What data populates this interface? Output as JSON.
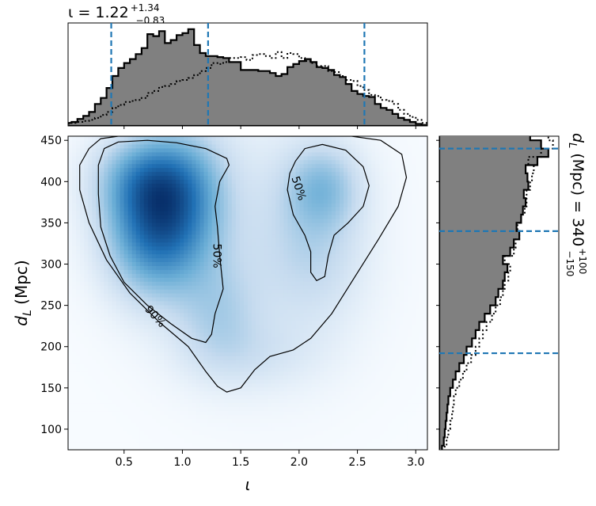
{
  "figure": {
    "top_title": {
      "symbol": "ι = 1.22",
      "sup": "+1.34",
      "sub": "−0.83"
    },
    "right_title": {
      "main": "d",
      "sub_letter": "L",
      "rest": " (Mpc) = 340",
      "sup": "+100",
      "sub": "−150"
    }
  },
  "chart_data": [
    {
      "id": "joint",
      "type": "heatmap",
      "xlabel": "ι",
      "ylabel_main": "d",
      "ylabel_sub": "L",
      "ylabel_rest": " (Mpc)",
      "xlim": [
        0.02,
        3.1
      ],
      "ylim": [
        75,
        455
      ],
      "xticks": [
        0.5,
        1.0,
        1.5,
        2.0,
        2.5,
        3.0
      ],
      "xtick_labels": [
        "0.5",
        "1.0",
        "1.5",
        "2.0",
        "2.5",
        "3.0"
      ],
      "yticks": [
        100,
        150,
        200,
        250,
        300,
        350,
        400,
        450
      ],
      "ytick_labels": [
        "100",
        "150",
        "200",
        "250",
        "300",
        "350",
        "400",
        "450"
      ],
      "colormap": [
        "#f7fbff",
        "#c6dbef",
        "#6baed6",
        "#2171b5",
        "#08306b"
      ],
      "density_components": [
        {
          "x": 0.75,
          "y": 345,
          "sx": 0.28,
          "sy": 55,
          "w": 1.0
        },
        {
          "x": 0.7,
          "y": 405,
          "sx": 0.3,
          "sy": 35,
          "w": 0.55
        },
        {
          "x": 1.05,
          "y": 380,
          "sx": 0.25,
          "sy": 60,
          "w": 0.45
        },
        {
          "x": 1.3,
          "y": 240,
          "sx": 0.25,
          "sy": 45,
          "w": 0.28
        },
        {
          "x": 2.2,
          "y": 395,
          "sx": 0.22,
          "sy": 35,
          "w": 0.42
        },
        {
          "x": 2.15,
          "y": 320,
          "sx": 0.28,
          "sy": 60,
          "w": 0.22
        },
        {
          "x": 1.7,
          "y": 330,
          "sx": 0.55,
          "sy": 100,
          "w": 0.18
        },
        {
          "x": 1.6,
          "y": 190,
          "sx": 0.4,
          "sy": 30,
          "w": 0.14
        }
      ],
      "contours": [
        {
          "label": "90%",
          "label_pos": [
            0.77,
            237
          ],
          "label_rot": 48,
          "points": [
            [
              0.45,
              455
            ],
            [
              0.3,
              452
            ],
            [
              0.2,
              440
            ],
            [
              0.12,
              420
            ],
            [
              0.12,
              390
            ],
            [
              0.2,
              350
            ],
            [
              0.35,
              305
            ],
            [
              0.55,
              265
            ],
            [
              0.8,
              230
            ],
            [
              1.05,
              200
            ],
            [
              1.2,
              170
            ],
            [
              1.3,
              152
            ],
            [
              1.38,
              145
            ],
            [
              1.5,
              150
            ],
            [
              1.62,
              172
            ],
            [
              1.75,
              188
            ],
            [
              1.95,
              196
            ],
            [
              2.1,
              210
            ],
            [
              2.28,
              240
            ],
            [
              2.48,
              285
            ],
            [
              2.68,
              330
            ],
            [
              2.85,
              370
            ],
            [
              2.92,
              405
            ],
            [
              2.88,
              433
            ],
            [
              2.7,
              450
            ],
            [
              2.45,
              455
            ]
          ]
        },
        {
          "label": "50%",
          "label_pos": [
            1.3,
            310
          ],
          "label_rot": 90,
          "points": [
            [
              0.33,
              440
            ],
            [
              0.45,
              448
            ],
            [
              0.7,
              450
            ],
            [
              0.95,
              447
            ],
            [
              1.2,
              440
            ],
            [
              1.38,
              428
            ],
            [
              1.4,
              420
            ],
            [
              1.32,
              400
            ],
            [
              1.28,
              370
            ],
            [
              1.3,
              345
            ],
            [
              1.32,
              310
            ],
            [
              1.35,
              270
            ],
            [
              1.28,
              240
            ],
            [
              1.25,
              215
            ],
            [
              1.2,
              205
            ],
            [
              1.08,
              210
            ],
            [
              0.9,
              228
            ],
            [
              0.7,
              250
            ],
            [
              0.5,
              278
            ],
            [
              0.38,
              310
            ],
            [
              0.3,
              345
            ],
            [
              0.28,
              385
            ],
            [
              0.28,
              420
            ]
          ]
        },
        {
          "label": "50%",
          "label_pos": [
            2.0,
            392
          ],
          "label_rot": 72,
          "points": [
            [
              1.97,
              425
            ],
            [
              2.05,
              440
            ],
            [
              2.2,
              445
            ],
            [
              2.4,
              438
            ],
            [
              2.55,
              418
            ],
            [
              2.6,
              395
            ],
            [
              2.55,
              370
            ],
            [
              2.42,
              350
            ],
            [
              2.3,
              335
            ],
            [
              2.25,
              310
            ],
            [
              2.22,
              285
            ],
            [
              2.15,
              280
            ],
            [
              2.1,
              290
            ],
            [
              2.1,
              315
            ],
            [
              2.05,
              335
            ],
            [
              1.95,
              360
            ],
            [
              1.9,
              390
            ],
            [
              1.92,
              410
            ]
          ]
        }
      ]
    },
    {
      "id": "iota-marginal",
      "type": "area",
      "xlim": [
        0.02,
        3.1
      ],
      "bins": [
        0.05,
        0.1,
        0.15,
        0.2,
        0.25,
        0.3,
        0.35,
        0.4,
        0.45,
        0.5,
        0.55,
        0.6,
        0.65,
        0.7,
        0.75,
        0.8,
        0.85,
        0.9,
        0.95,
        1.0,
        1.05,
        1.1,
        1.15,
        1.2,
        1.25,
        1.3,
        1.35,
        1.4,
        1.45,
        1.5,
        1.55,
        1.6,
        1.65,
        1.7,
        1.75,
        1.8,
        1.85,
        1.9,
        1.95,
        2.0,
        2.05,
        2.1,
        2.15,
        2.2,
        2.25,
        2.3,
        2.35,
        2.4,
        2.45,
        2.5,
        2.55,
        2.6,
        2.65,
        2.7,
        2.75,
        2.8,
        2.85,
        2.9,
        2.95,
        3.0,
        3.05,
        3.1
      ],
      "primary": [
        3,
        4,
        7,
        10,
        14,
        22,
        28,
        38,
        50,
        58,
        63,
        67,
        72,
        78,
        92,
        90,
        95,
        83,
        86,
        91,
        93,
        97,
        81,
        73,
        70,
        70,
        69,
        68,
        64,
        64,
        56,
        56,
        56,
        55,
        55,
        53,
        50,
        52,
        59,
        62,
        65,
        67,
        64,
        59,
        58,
        56,
        51,
        49,
        42,
        35,
        32,
        30,
        29,
        22,
        18,
        16,
        12,
        8,
        6,
        4,
        2,
        1
      ],
      "secondary": [
        2,
        3,
        4,
        5,
        6,
        8,
        11,
        14,
        18,
        21,
        24,
        25,
        26,
        28,
        33,
        35,
        39,
        40,
        42,
        45,
        46,
        48,
        51,
        55,
        58,
        63,
        62,
        64,
        68,
        68,
        69,
        66,
        71,
        72,
        70,
        68,
        74,
        68,
        73,
        72,
        68,
        65,
        63,
        60,
        60,
        55,
        54,
        50,
        46,
        45,
        40,
        36,
        31,
        30,
        26,
        25,
        22,
        16,
        12,
        9,
        6,
        3
      ],
      "lines": [
        0.39,
        1.22,
        2.56
      ],
      "max": 100
    },
    {
      "id": "dl-marginal",
      "type": "area",
      "ylim": [
        75,
        455
      ],
      "bins": [
        80,
        90,
        100,
        110,
        120,
        130,
        140,
        150,
        160,
        170,
        180,
        190,
        200,
        210,
        220,
        230,
        240,
        250,
        260,
        270,
        280,
        290,
        300,
        310,
        320,
        330,
        340,
        350,
        360,
        370,
        380,
        390,
        400,
        410,
        420,
        430,
        440,
        450,
        460
      ],
      "primary": [
        3,
        5,
        6,
        7,
        8,
        9,
        10,
        12,
        15,
        18,
        22,
        27,
        30,
        36,
        40,
        44,
        50,
        56,
        62,
        65,
        70,
        72,
        75,
        70,
        78,
        82,
        88,
        85,
        90,
        92,
        95,
        93,
        98,
        97,
        95,
        108,
        120,
        112,
        100
      ],
      "secondary": [
        6,
        8,
        10,
        12,
        14,
        15,
        16,
        18,
        22,
        26,
        30,
        35,
        40,
        44,
        48,
        52,
        58,
        62,
        67,
        70,
        72,
        76,
        78,
        72,
        82,
        84,
        88,
        86,
        90,
        94,
        96,
        96,
        100,
        102,
        104,
        98,
        112,
        125,
        120
      ],
      "lines": [
        192,
        340,
        440
      ],
      "max": 128
    }
  ]
}
